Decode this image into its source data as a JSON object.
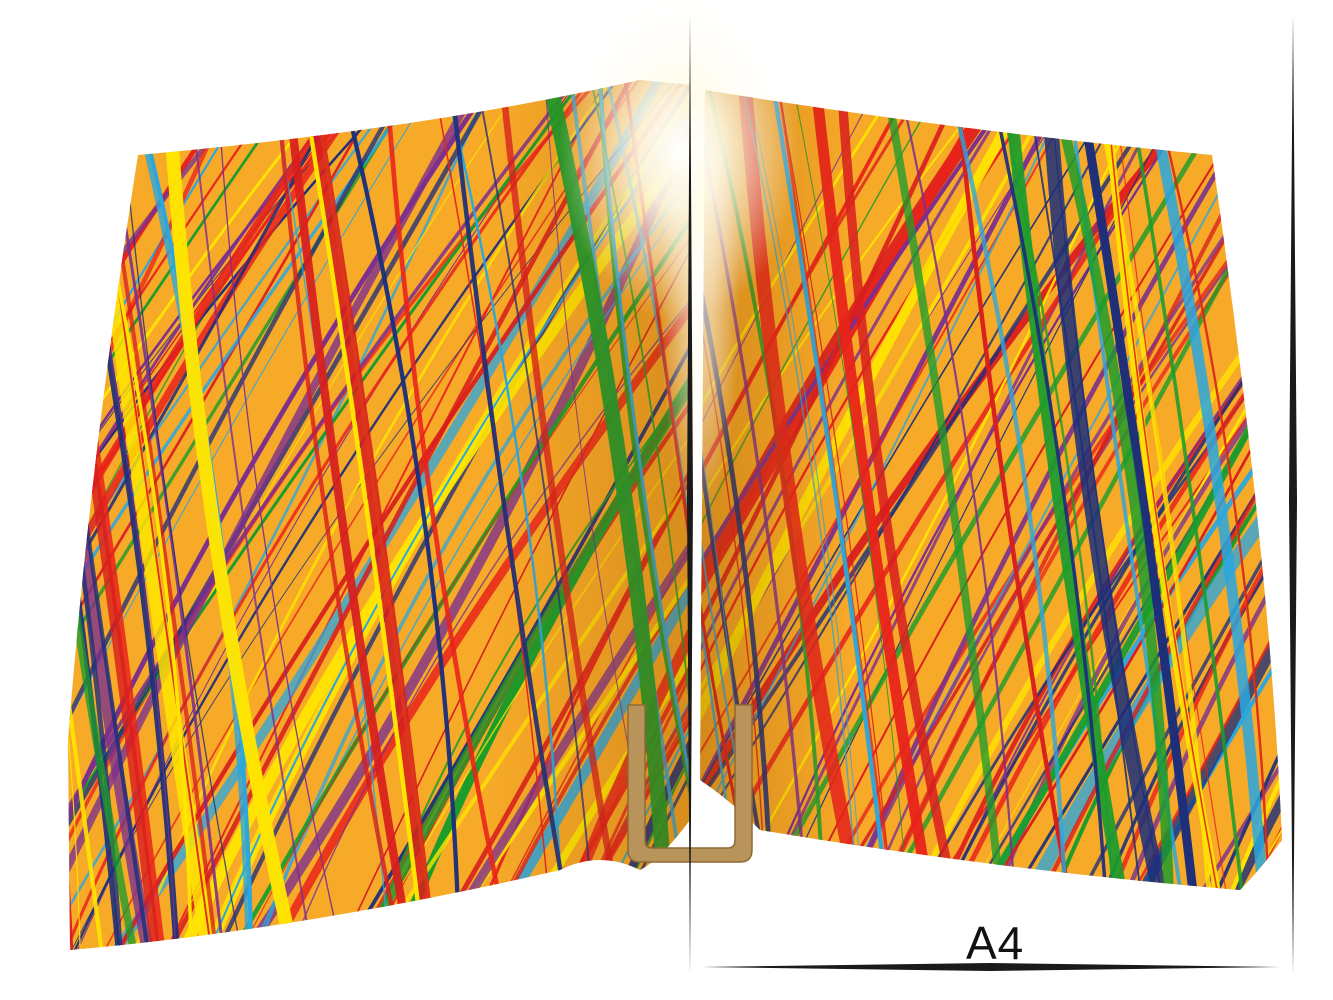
{
  "format_label": "A4",
  "colors": {
    "base": "#f7a928",
    "stripes": [
      "#e8231b",
      "#ffe600",
      "#1a9c2c",
      "#2aa7df",
      "#7b2f8e",
      "#1c2f7a",
      "#d81e1e"
    ],
    "ruler": "#1a1a1a",
    "spine_clip": "#b8935a",
    "glare": "#ffffff"
  },
  "icons": {
    "spine_clip": "binding-clip-icon",
    "highlight": "light-glare"
  }
}
